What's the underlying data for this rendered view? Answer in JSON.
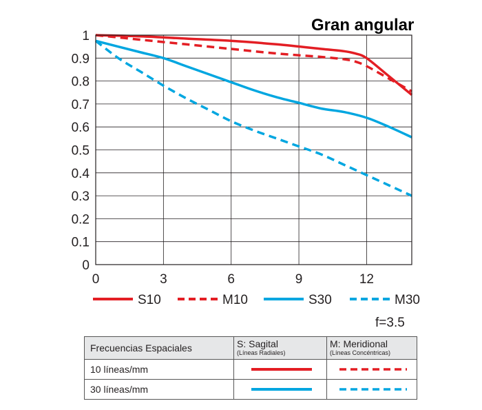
{
  "chart_data": {
    "type": "line",
    "title": "Gran angular",
    "xlim": [
      0,
      14
    ],
    "ylim": [
      0,
      1
    ],
    "x_ticks": [
      "0",
      "3",
      "6",
      "9",
      "12"
    ],
    "y_ticks": [
      "0",
      "0.1",
      "0.2",
      "0.3",
      "0.4",
      "0.5",
      "0.6",
      "0.7",
      "0.8",
      "0.9",
      "1"
    ],
    "grid": true,
    "legend_position": "bottom",
    "series": [
      {
        "name": "S10",
        "color": "#e31e24",
        "dash": "solid",
        "x": [
          0,
          2,
          4,
          6,
          8,
          10,
          11,
          11.5,
          12,
          13,
          14
        ],
        "y": [
          1.0,
          0.995,
          0.985,
          0.975,
          0.96,
          0.94,
          0.93,
          0.92,
          0.9,
          0.82,
          0.74
        ]
      },
      {
        "name": "M10",
        "color": "#e31e24",
        "dash": "dashed",
        "x": [
          0,
          2,
          4,
          6,
          8,
          10,
          11,
          11.5,
          12,
          13,
          14
        ],
        "y": [
          1.0,
          0.98,
          0.96,
          0.94,
          0.92,
          0.905,
          0.895,
          0.885,
          0.865,
          0.81,
          0.755
        ]
      },
      {
        "name": "S30",
        "color": "#00a6e0",
        "dash": "solid",
        "x": [
          0,
          1,
          2,
          3,
          4,
          5,
          6,
          7,
          8,
          9,
          10,
          11,
          12,
          13,
          14
        ],
        "y": [
          0.975,
          0.95,
          0.925,
          0.9,
          0.865,
          0.83,
          0.795,
          0.76,
          0.73,
          0.705,
          0.68,
          0.665,
          0.64,
          0.6,
          0.555
        ]
      },
      {
        "name": "M30",
        "color": "#00a6e0",
        "dash": "dashed",
        "x": [
          0,
          1,
          2,
          3,
          4,
          5,
          6,
          7,
          8,
          9,
          10,
          11,
          12,
          13,
          14
        ],
        "y": [
          0.975,
          0.9,
          0.84,
          0.78,
          0.725,
          0.675,
          0.625,
          0.585,
          0.55,
          0.515,
          0.48,
          0.435,
          0.39,
          0.345,
          0.3
        ]
      }
    ]
  },
  "aperture": "f=3.5",
  "table": {
    "header": {
      "col1": "Frecuencias Espaciales",
      "col2_main": "S: Sagital",
      "col2_sub": "(Líneas Radiales)",
      "col3_main": "M: Meridional",
      "col3_sub": "(Líneas Concéntricas)"
    },
    "rows": [
      {
        "label": "10 líneas/mm",
        "color": "#e31e24"
      },
      {
        "label": "30 líneas/mm",
        "color": "#00a6e0"
      }
    ]
  }
}
